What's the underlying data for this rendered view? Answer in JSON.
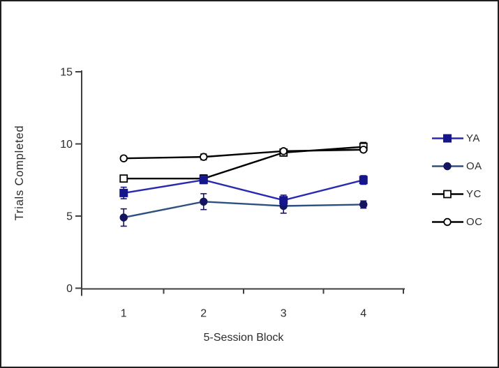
{
  "figure": {
    "background": "#ffffff",
    "border_color": "#1f1f1f"
  },
  "chart_data": {
    "type": "line",
    "title": "",
    "xlabel": "5-Session Block",
    "ylabel": "Trials Completed",
    "categories": [
      "1",
      "2",
      "3",
      "4"
    ],
    "yticks": [
      0,
      5,
      10,
      15
    ],
    "ylim": [
      0,
      15
    ],
    "grid": false,
    "legend_position": "right",
    "error_bars": true,
    "axis_color": "#3f3f3f",
    "series": [
      {
        "name": "YA",
        "marker": "filled-square",
        "color": "#2929b0",
        "marker_color": "#15158c",
        "values": [
          6.6,
          7.5,
          6.1,
          7.5
        ],
        "errors": [
          0.4,
          0.25,
          0.35,
          0.3
        ]
      },
      {
        "name": "OA",
        "marker": "filled-circle",
        "color": "#2e5080",
        "marker_color": "#15155f",
        "values": [
          4.9,
          6.0,
          5.7,
          5.8
        ],
        "errors": [
          0.6,
          0.55,
          0.5,
          0.25
        ]
      },
      {
        "name": "YC",
        "marker": "open-square",
        "color": "#000000",
        "marker_color": "#000000",
        "values": [
          7.6,
          7.6,
          9.4,
          9.8
        ],
        "errors": [
          0.2,
          0.25,
          0.2,
          0.3
        ]
      },
      {
        "name": "OC",
        "marker": "open-circle",
        "color": "#000000",
        "marker_color": "#000000",
        "values": [
          9.0,
          9.1,
          9.5,
          9.6
        ],
        "errors": [
          0.15,
          0.2,
          0.15,
          0.15
        ]
      }
    ]
  }
}
